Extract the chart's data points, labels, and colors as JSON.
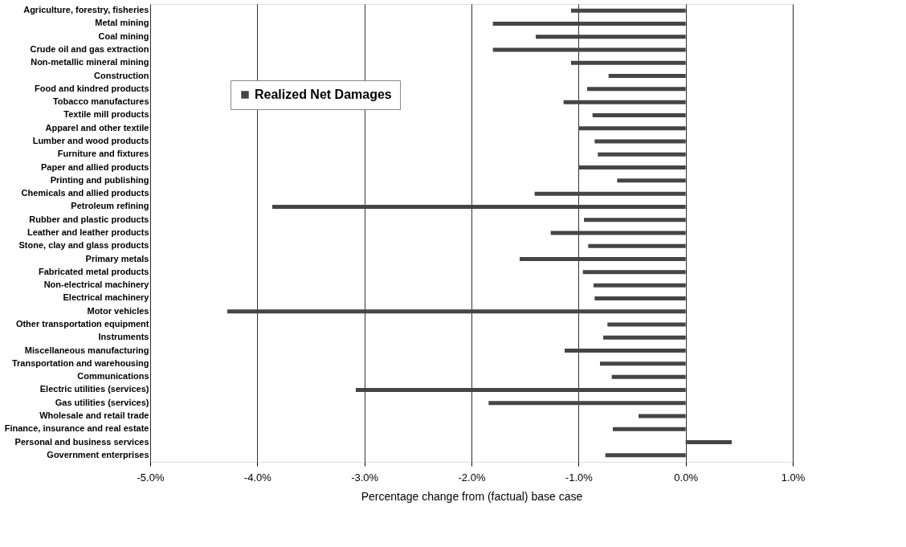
{
  "chart_data": {
    "type": "bar",
    "orientation": "horizontal",
    "xlabel": "Percentage change from (factual) base case",
    "categories": [
      "Agriculture, forestry, fisheries",
      "Metal mining",
      "Coal mining",
      "Crude oil and gas extraction",
      "Non-metallic mineral mining",
      "Construction",
      "Food and kindred products",
      "Tobacco manufactures",
      "Textile mill products",
      "Apparel and other textile",
      "Lumber and wood products",
      "Furniture and fixtures",
      "Paper and allied products",
      "Printing and publishing",
      "Chemicals and allied products",
      "Petroleum refining",
      "Rubber and plastic products",
      "Leather and leather products",
      "Stone, clay and glass products",
      "Primary metals",
      "Fabricated metal products",
      "Non-electrical machinery",
      "Electrical machinery",
      "Motor vehicles",
      "Other transportation equipment",
      "Instruments",
      "Miscellaneous manufacturing",
      "Transportation and warehousing",
      "Communications",
      "Electric utilities (services)",
      "Gas utilities (services)",
      "Wholesale and retail trade",
      "Finance, insurance and real estate",
      "Personal and business services",
      "Government enterprises"
    ],
    "series": [
      {
        "name": "Realized Net Damages",
        "color": "#454545",
        "values": [
          -1.07,
          -1.8,
          -1.4,
          -1.8,
          -1.07,
          -0.72,
          -0.92,
          -1.14,
          -0.87,
          -1.0,
          -0.85,
          -0.82,
          -1.0,
          -0.64,
          -1.41,
          -3.86,
          -0.95,
          -1.26,
          -0.91,
          -1.55,
          -0.96,
          -0.86,
          -0.85,
          -4.28,
          -0.73,
          -0.77,
          -1.13,
          -0.8,
          -0.69,
          -3.08,
          -1.84,
          -0.44,
          -0.68,
          0.43,
          -0.75
        ]
      }
    ],
    "xlim": [
      -5,
      1
    ],
    "xticks": [
      {
        "value": -5,
        "label": "-5.0%"
      },
      {
        "value": -4,
        "label": "-4.0%"
      },
      {
        "value": -3,
        "label": "-3.0%"
      },
      {
        "value": -2,
        "label": "-2.0%"
      },
      {
        "value": -1,
        "label": "-1.0%"
      },
      {
        "value": 0,
        "label": "0.0%"
      },
      {
        "value": 1,
        "label": "1.0%"
      }
    ],
    "grid": "x",
    "legend": "top left"
  }
}
